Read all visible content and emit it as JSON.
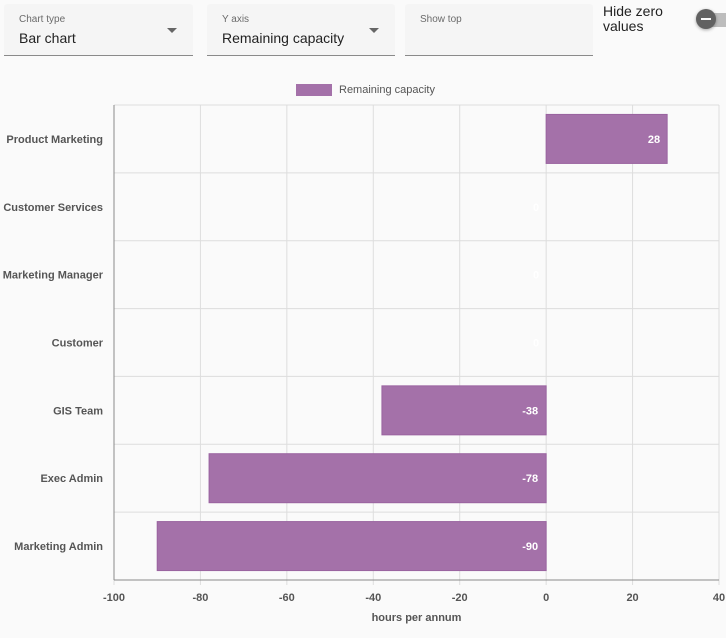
{
  "controls": {
    "chart_type": {
      "label": "Chart type",
      "value": "Bar chart"
    },
    "y_axis": {
      "label": "Y axis",
      "value": "Remaining capacity"
    },
    "show_top": {
      "label": "Show top",
      "value": ""
    },
    "hide_zero": {
      "label": "Hide zero values",
      "on": false
    }
  },
  "colors": {
    "bar": "#a471a9",
    "grid": "#dddddd",
    "axis": "#8a8a8a",
    "label": "#555555",
    "bar_text": "#ffffff"
  },
  "chart_data": {
    "type": "bar",
    "orientation": "horizontal",
    "categories": [
      "Product Marketing",
      "Customer Services",
      "Marketing Manager",
      "Customer",
      "GIS Team",
      "Exec Admin",
      "Marketing Admin"
    ],
    "series": [
      {
        "name": "Remaining capacity",
        "values": [
          28,
          0,
          0,
          0,
          -38,
          -78,
          -90
        ]
      }
    ],
    "xlabel": "hours per annum",
    "xlim": [
      -100,
      40
    ],
    "xticks": [
      -100,
      -80,
      -60,
      -40,
      -20,
      0,
      20,
      40
    ],
    "legend": "top-center",
    "grid": true
  }
}
